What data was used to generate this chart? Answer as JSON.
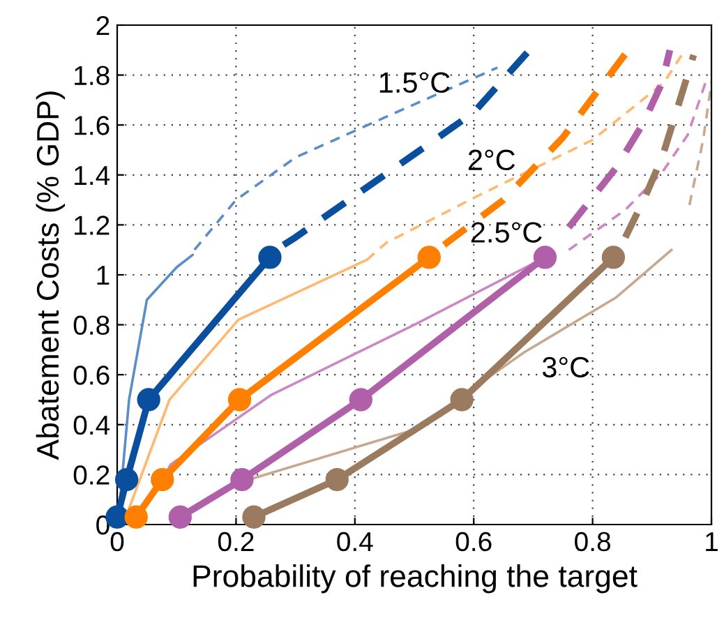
{
  "chart_data": {
    "type": "line",
    "xlabel": "Probability of reaching the target",
    "ylabel": "Abatement Costs (% GDP)",
    "xlim": [
      0,
      1
    ],
    "ylim": [
      0,
      2
    ],
    "xticks": [
      0,
      0.2,
      0.4,
      0.6,
      0.8,
      1
    ],
    "yticks": [
      0,
      0.2,
      0.4,
      0.6,
      0.8,
      1,
      1.2,
      1.4,
      1.6,
      1.8,
      2
    ],
    "grid": true,
    "legend": false,
    "annotations": [
      "1.5°C",
      "2°C",
      "2.5°C",
      "3°C"
    ],
    "series": [
      {
        "color": "#0a4f9e",
        "line_style": "solid",
        "marker": "circle",
        "x": [
          0.0,
          0.016,
          0.053,
          0.257
        ],
        "values": [
          0.03,
          0.18,
          0.5,
          1.07
        ]
      },
      {
        "color": "#0a4f9e",
        "line_style": "dashed",
        "marker": "none",
        "x": [
          0.28,
          0.3,
          0.45,
          0.6,
          0.69
        ],
        "values": [
          1.12,
          1.15,
          1.4,
          1.65,
          1.89
        ]
      },
      {
        "color": "#5b8ec6",
        "line_style": "solid",
        "marker": "none",
        "x": [
          0.0,
          0.005,
          0.02,
          0.05,
          0.1,
          0.127
        ],
        "values": [
          0.0,
          0.1,
          0.5,
          0.9,
          1.03,
          1.08
        ]
      },
      {
        "color": "#5b8ec6",
        "line_style": "dashed",
        "marker": "none",
        "x": [
          0.13,
          0.2,
          0.3,
          0.45,
          0.64
        ],
        "values": [
          1.1,
          1.3,
          1.47,
          1.63,
          1.83
        ]
      },
      {
        "color": "#ff8000",
        "line_style": "solid",
        "marker": "circle",
        "x": [
          0.032,
          0.076,
          0.206,
          0.525
        ],
        "values": [
          0.03,
          0.18,
          0.5,
          1.07
        ]
      },
      {
        "color": "#ff8000",
        "line_style": "dashed",
        "marker": "none",
        "x": [
          0.55,
          0.65,
          0.75,
          0.86
        ],
        "values": [
          1.12,
          1.3,
          1.55,
          1.9
        ]
      },
      {
        "color": "#ffb870",
        "line_style": "solid",
        "marker": "none",
        "x": [
          0.01,
          0.088,
          0.204,
          0.42
        ],
        "values": [
          0.0,
          0.5,
          0.82,
          1.06
        ]
      },
      {
        "color": "#ffb870",
        "line_style": "dashed",
        "marker": "none",
        "x": [
          0.42,
          0.454,
          0.61,
          0.8,
          0.92,
          0.95
        ],
        "values": [
          1.06,
          1.13,
          1.32,
          1.54,
          1.77,
          1.88
        ]
      },
      {
        "color": "#b060a8",
        "line_style": "solid",
        "marker": "circle",
        "x": [
          0.106,
          0.21,
          0.41,
          0.72
        ],
        "values": [
          0.03,
          0.18,
          0.5,
          1.07
        ]
      },
      {
        "color": "#b060a8",
        "line_style": "dashed",
        "marker": "none",
        "x": [
          0.76,
          0.84,
          0.886,
          0.917,
          0.93
        ],
        "values": [
          1.19,
          1.43,
          1.61,
          1.77,
          1.9
        ]
      },
      {
        "color": "#cc88c4",
        "line_style": "solid",
        "marker": "none",
        "x": [
          0.03,
          0.09,
          0.26,
          0.5,
          0.72
        ],
        "values": [
          0.0,
          0.24,
          0.52,
          0.8,
          1.07
        ]
      },
      {
        "color": "#cc88c4",
        "line_style": "dashed",
        "marker": "none",
        "x": [
          0.76,
          0.855,
          0.917,
          0.96,
          0.99
        ],
        "values": [
          1.1,
          1.26,
          1.41,
          1.56,
          1.77
        ]
      },
      {
        "color": "#9a7b60",
        "line_style": "solid",
        "marker": "circle",
        "x": [
          0.23,
          0.37,
          0.58,
          0.835
        ],
        "values": [
          0.03,
          0.18,
          0.5,
          1.07
        ]
      },
      {
        "color": "#9a7b60",
        "line_style": "dashed",
        "marker": "none",
        "x": [
          0.855,
          0.886,
          0.917,
          0.947,
          0.97
        ],
        "values": [
          1.15,
          1.3,
          1.47,
          1.7,
          1.88
        ]
      },
      {
        "color": "#c8a890",
        "line_style": "solid",
        "marker": "none",
        "x": [
          0.222,
          0.5,
          0.685,
          0.84,
          0.933
        ],
        "values": [
          0.18,
          0.38,
          0.69,
          0.91,
          1.1
        ]
      },
      {
        "color": "#c8a890",
        "line_style": "dashed",
        "marker": "none",
        "x": [
          0.963,
          0.986,
          1.0
        ],
        "values": [
          1.28,
          1.54,
          1.77
        ]
      }
    ]
  }
}
